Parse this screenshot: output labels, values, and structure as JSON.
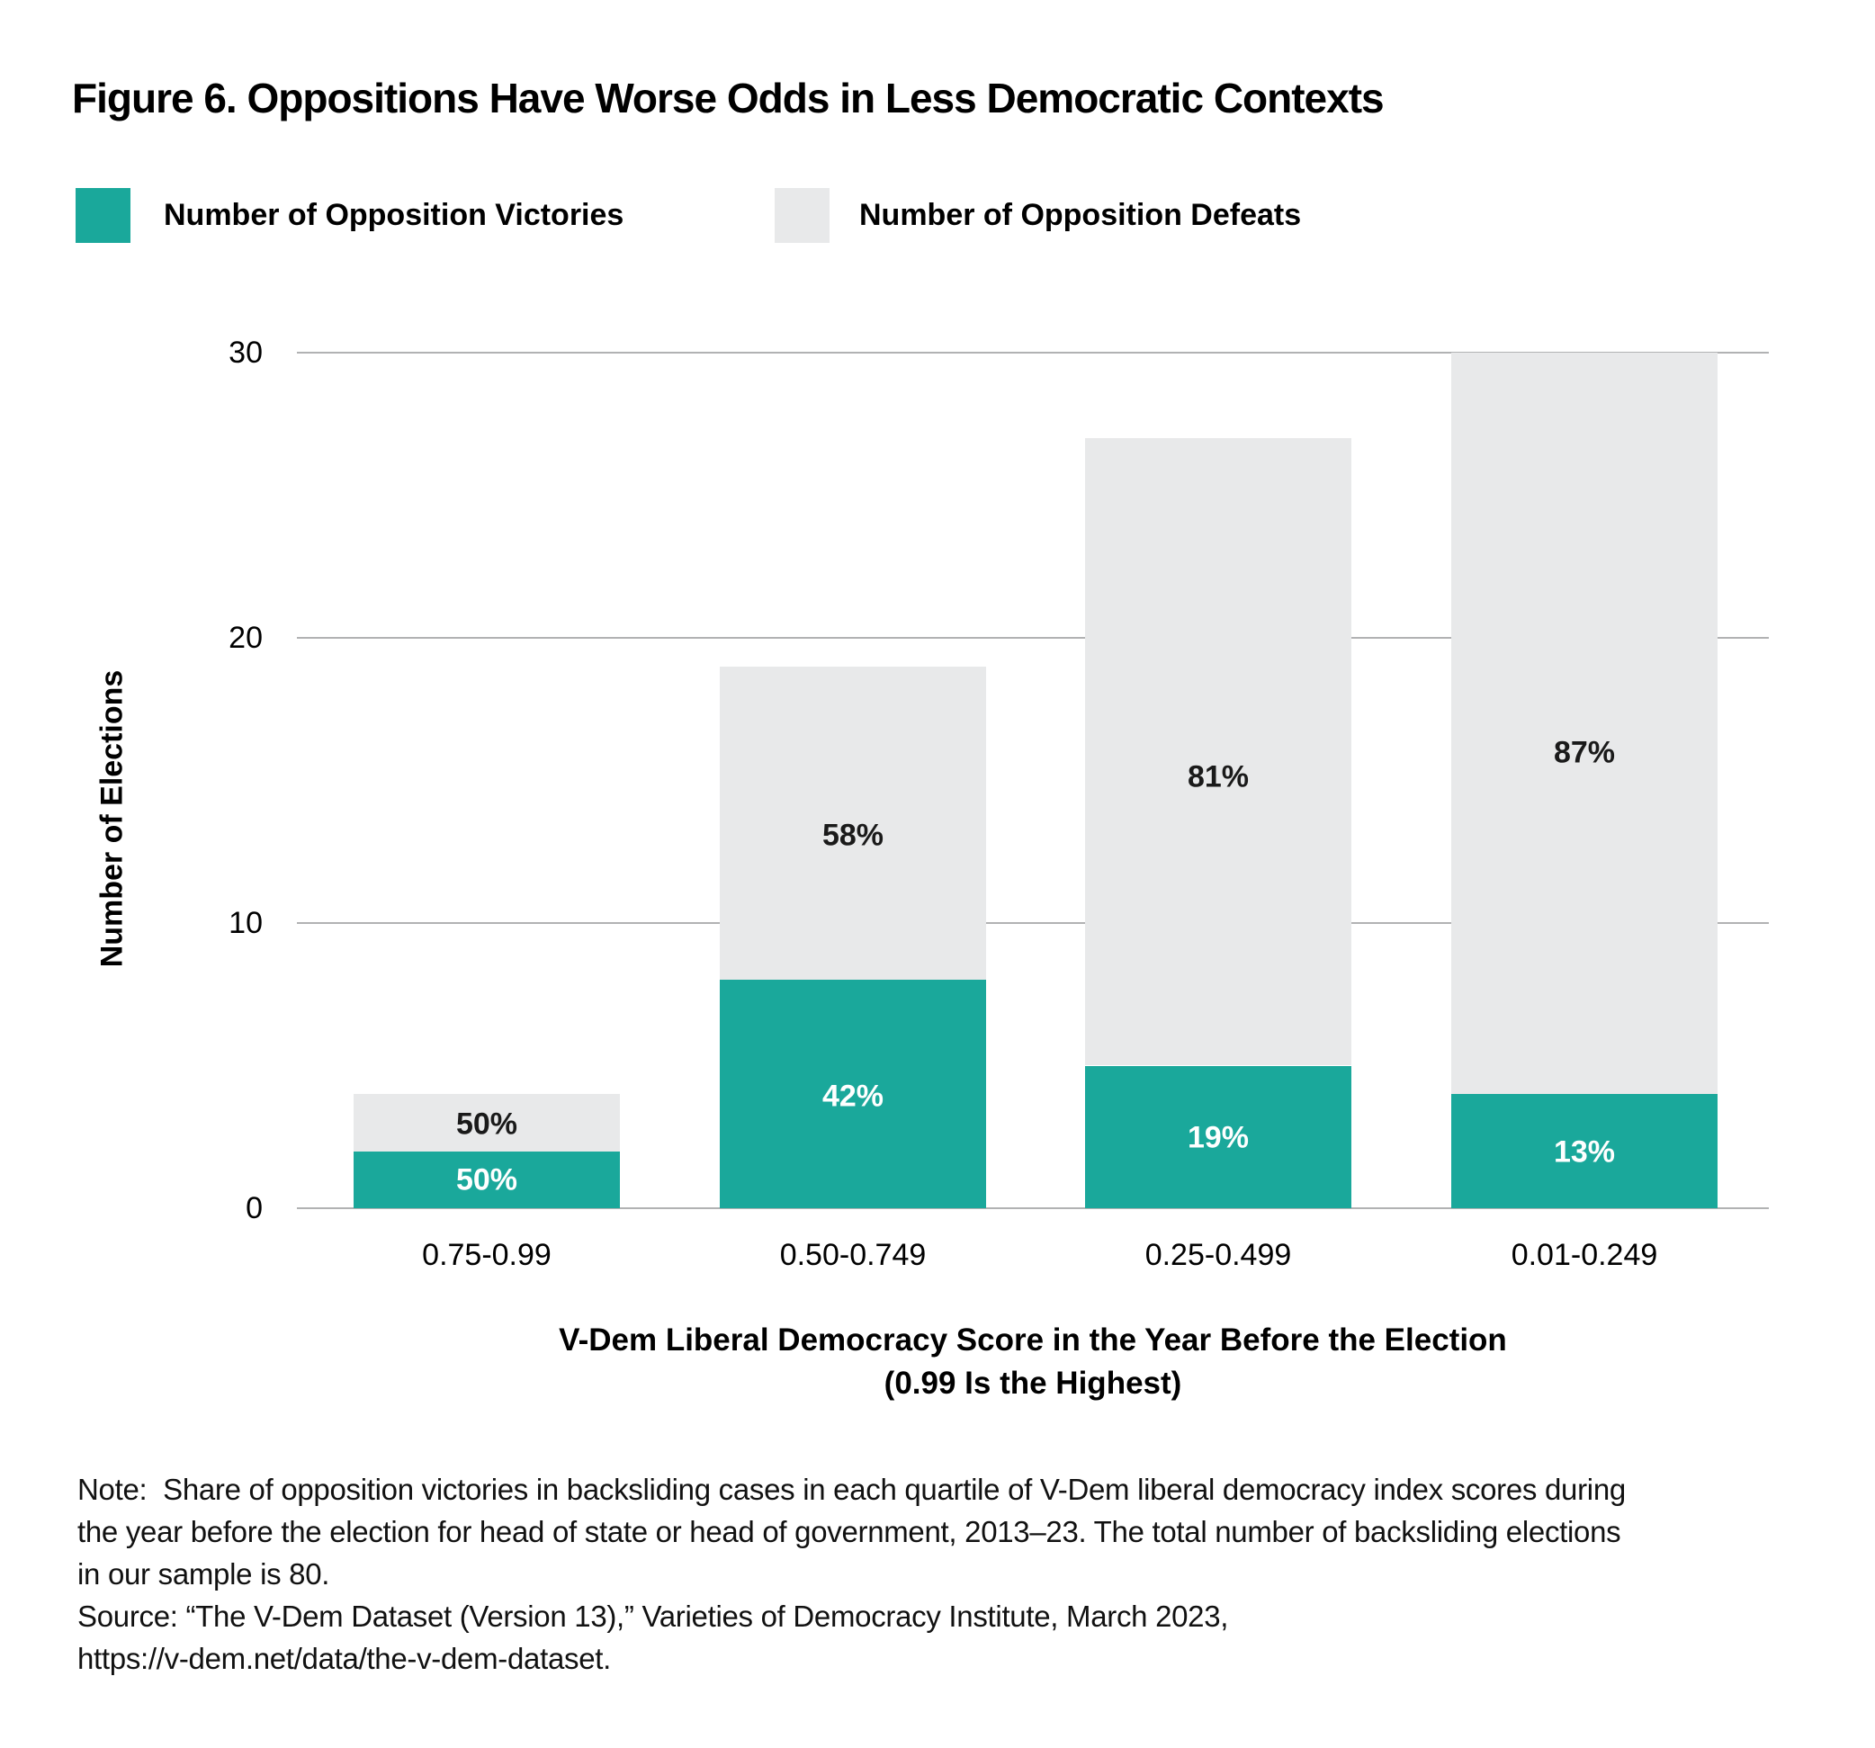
{
  "title": "Figure 6. Oppositions Have Worse Odds in Less Democratic Contexts",
  "legend": {
    "victories_label": "Number of Opposition Victories",
    "defeats_label": "Number of Opposition Defeats"
  },
  "colors": {
    "victory_teal": "#1aa89b",
    "defeat_gray": "#e8e9ea",
    "gridline_gray": "#b1b2b3",
    "text_black": "#000000",
    "label_on_gray": "#1a1a1a",
    "label_on_teal": "#ffffff"
  },
  "chart_data": {
    "type": "bar",
    "stacked": true,
    "title": "Figure 6. Oppositions Have Worse Odds in Less Democratic Contexts",
    "categories": [
      "0.75-0.99",
      "0.50-0.749",
      "0.25-0.499",
      "0.01-0.249"
    ],
    "series": [
      {
        "name": "Number of Opposition Victories",
        "values": [
          2,
          8,
          5,
          4
        ],
        "percent_labels": [
          "50%",
          "42%",
          "19%",
          "13%"
        ]
      },
      {
        "name": "Number of Opposition Defeats",
        "values": [
          2,
          11,
          22,
          26
        ],
        "percent_labels": [
          "50%",
          "58%",
          "81%",
          "87%"
        ]
      }
    ],
    "totals": [
      4,
      19,
      27,
      30
    ],
    "ylabel": "Number of Elections",
    "xlabel_line1": "V-Dem Liberal Democracy Score in the Year Before the Election",
    "xlabel_line2": "(0.99 Is the Highest)",
    "yticks": [
      0,
      10,
      20,
      30
    ],
    "ylim": [
      0,
      30
    ],
    "grid": true,
    "legend_position": "top-left"
  },
  "note": {
    "lines": [
      "Note:  Share of opposition victories in backsliding cases in each quartile of V-Dem liberal democracy index scores during",
      "the year before the election for head of state or head of government, 2013–23. The total number of backsliding elections",
      "in our sample is 80."
    ],
    "source_lines": [
      "Source: “The V-Dem Dataset (Version 13),” Varieties of Democracy Institute, March 2023,",
      "https://v-dem.net/data/the-v-dem-dataset."
    ]
  }
}
